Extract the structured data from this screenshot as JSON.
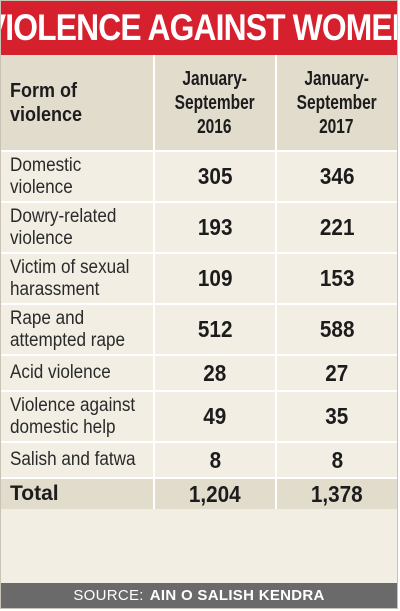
{
  "title": "VIOLENCE AGAINST WOMEN",
  "table": {
    "header": {
      "form": [
        "Form of",
        "violence"
      ],
      "col2016": [
        "January-",
        "September",
        "2016"
      ],
      "col2017": [
        "January-",
        "September",
        "2017"
      ]
    },
    "rows": [
      {
        "label": [
          "Domestic",
          "violence"
        ],
        "v2016": "305",
        "v2017": "346"
      },
      {
        "label": [
          "Dowry-related",
          "violence"
        ],
        "v2016": "193",
        "v2017": "221"
      },
      {
        "label": [
          "Victim of sexual",
          "harassment"
        ],
        "v2016": "109",
        "v2017": "153"
      },
      {
        "label": [
          "Rape and",
          "attempted rape"
        ],
        "v2016": "512",
        "v2017": "588"
      },
      {
        "label": [
          "Acid violence"
        ],
        "v2016": "28",
        "v2017": "27"
      },
      {
        "label": [
          "Violence against",
          "domestic help"
        ],
        "v2016": "49",
        "v2017": "35"
      },
      {
        "label": [
          "Salish and fatwa"
        ],
        "v2016": "8",
        "v2017": "8"
      }
    ],
    "total": {
      "label": "Total",
      "v2016": "1,204",
      "v2017": "1,378"
    }
  },
  "source": {
    "label": "SOURCE:",
    "value": "AIN O SALISH KENDRA"
  },
  "colors": {
    "title_bar": "#d7202d",
    "header_bg": "#e2dccd",
    "row_bg": "#f2eee4",
    "source_bar": "#6a6a6a"
  }
}
